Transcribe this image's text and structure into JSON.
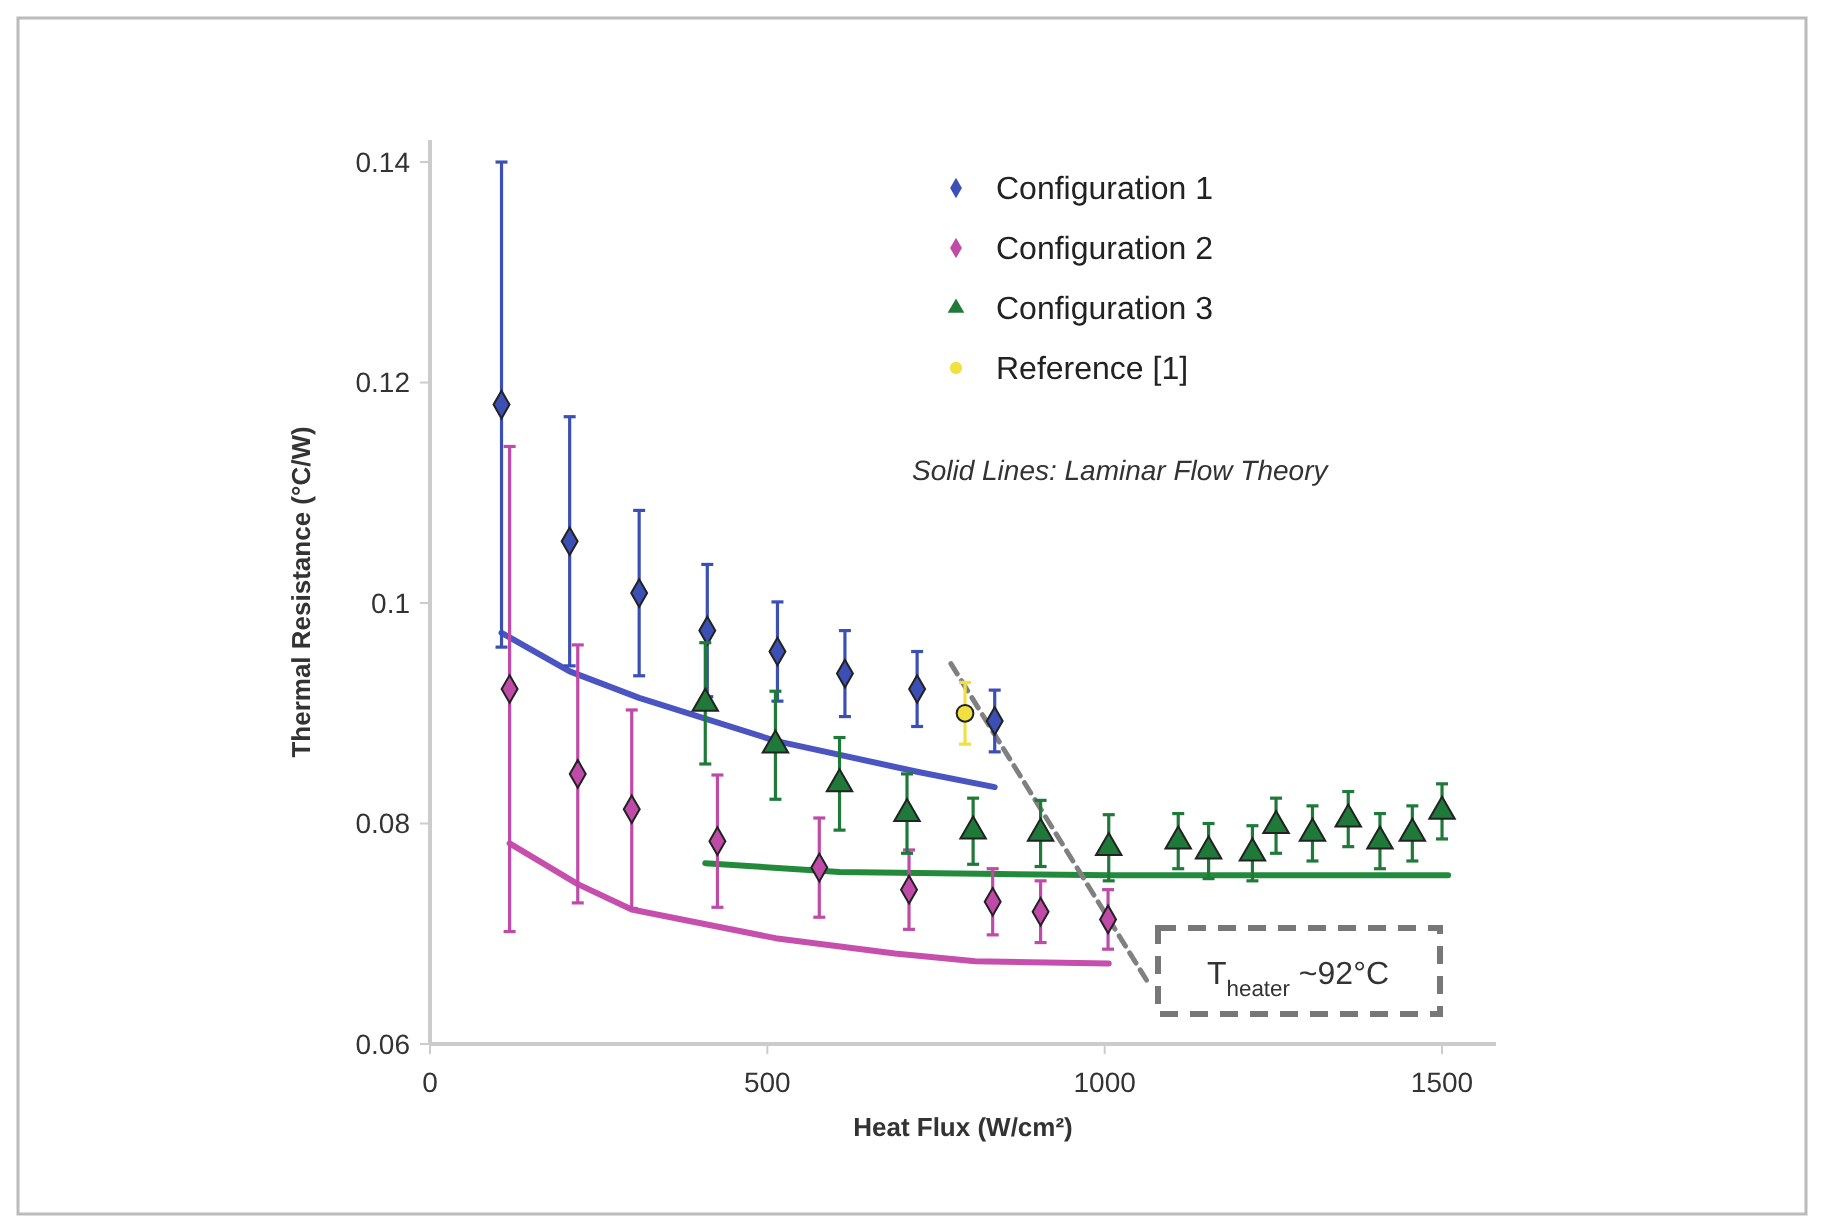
{
  "chart_data": {
    "type": "scatter",
    "xlabel": "Heat Flux (W/cm²)",
    "ylabel": "Thermal Resistance (°C/W)",
    "xlim": [
      0,
      1580
    ],
    "ylim": [
      0.06,
      0.142
    ],
    "xticks": [
      0,
      500,
      1000,
      1500
    ],
    "yticks": [
      0.06,
      0.08,
      0.1,
      0.12,
      0.14
    ],
    "grid": false,
    "legend": "top right",
    "annotations": [
      "Solid Lines: Laminar Flow Theory",
      "T$_{heater}$ ~92°C"
    ],
    "series": [
      {
        "name": "Configuration 1",
        "marker": "diamond",
        "color": "#3b4fb5",
        "x": [
          106,
          207,
          310,
          411,
          515,
          615,
          722,
          837
        ],
        "values": [
          0.118,
          0.1056,
          0.1009,
          0.0975,
          0.0956,
          0.0936,
          0.0922,
          0.0893
        ],
        "errors": [
          0.022,
          0.0113,
          0.0075,
          0.006,
          0.0045,
          0.0039,
          0.0034,
          0.0028
        ]
      },
      {
        "name": "Configuration 2",
        "marker": "diamond",
        "color": "#c04aa8",
        "x": [
          118,
          219,
          299,
          426,
          577,
          710,
          834,
          905,
          1005
        ],
        "values": [
          0.0922,
          0.0845,
          0.0813,
          0.0784,
          0.076,
          0.074,
          0.0729,
          0.072,
          0.0713
        ],
        "errors": [
          0.022,
          0.0117,
          0.009,
          0.006,
          0.0045,
          0.0036,
          0.003,
          0.0028,
          0.0027
        ]
      },
      {
        "name": "Configuration 3",
        "marker": "triangle",
        "color": "#1f7a3a",
        "x": [
          408,
          512,
          607,
          707,
          805,
          905,
          1006,
          1109,
          1154,
          1219,
          1254,
          1308,
          1361,
          1408,
          1456,
          1500
        ],
        "values": [
          0.0909,
          0.0871,
          0.0836,
          0.0809,
          0.0793,
          0.0791,
          0.0778,
          0.0784,
          0.0775,
          0.0773,
          0.0798,
          0.0791,
          0.0804,
          0.0784,
          0.0791,
          0.0811
        ],
        "errors": [
          0.0055,
          0.0049,
          0.0042,
          0.0036,
          0.003,
          0.003,
          0.003,
          0.0025,
          0.0025,
          0.0025,
          0.0025,
          0.0025,
          0.0025,
          0.0025,
          0.0025,
          0.0025
        ]
      },
      {
        "name": "Reference [1]",
        "marker": "circle",
        "color": "#f0e040",
        "x": [
          793
        ],
        "values": [
          0.09
        ],
        "errors": [
          0.0028
        ]
      },
      {
        "type": "line",
        "marker": "none",
        "color": "#4a55c2",
        "x": [
          106,
          207,
          310,
          512,
          722,
          837
        ],
        "values": [
          0.0973,
          0.0938,
          0.0914,
          0.0875,
          0.0847,
          0.0833
        ]
      },
      {
        "type": "line",
        "marker": "none",
        "color": "#c64fae",
        "x": [
          118,
          219,
          299,
          512,
          689,
          808,
          1006
        ],
        "values": [
          0.0782,
          0.0745,
          0.0722,
          0.0696,
          0.0682,
          0.0675,
          0.0673
        ]
      },
      {
        "type": "line",
        "marker": "none",
        "color": "#238a3c",
        "x": [
          408,
          607,
          1006,
          1509
        ],
        "values": [
          0.0764,
          0.0756,
          0.0753,
          0.0753
        ]
      },
      {
        "type": "line",
        "marker": "none",
        "line_style": "dashed",
        "color": "#808080",
        "x": [
          772,
          1065
        ],
        "values": [
          0.0945,
          0.0655
        ]
      }
    ]
  }
}
